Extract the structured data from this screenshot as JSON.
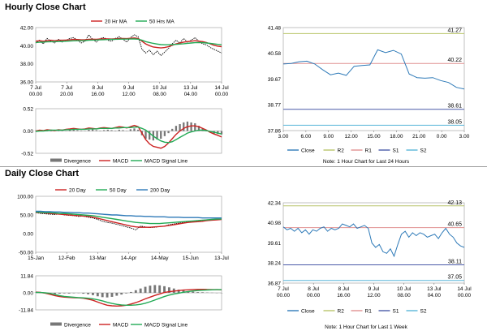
{
  "page": {
    "hourly_title": "Hourly Close Chart",
    "daily_title": "Daily Close Chart",
    "hourly_note": "Note: 1 Hour Chart for Last 24 Hours",
    "daily_note": "Note: 1 Hour Chart for Last 1 Week"
  },
  "colors": {
    "price": "#000000",
    "ma_fast": "#cc2222",
    "ma_slow": "#22aa55",
    "close": "#2e7ab8",
    "r2": "#b8c46a",
    "r1": "#e09090",
    "s1": "#4a5aa8",
    "s2": "#59b6d9",
    "divergence": "#777777",
    "macd": "#cc2222",
    "signal": "#22aa55"
  },
  "chart_data": [
    {
      "id": "hourly-ma",
      "type": "line",
      "ylim": [
        36.0,
        42.0
      ],
      "yticks": [
        "42.00",
        "40.00",
        "38.00",
        "36.00"
      ],
      "ytick_values": [
        42,
        40,
        38,
        36
      ],
      "xticks": [
        [
          "7 Jul",
          "00.00"
        ],
        [
          "7 Jul",
          "20.00"
        ],
        [
          "8 Jul",
          "16.00"
        ],
        [
          "9 Jul",
          "12.00"
        ],
        [
          "10 Jul",
          "08.00"
        ],
        [
          "13 Jul",
          "04.00"
        ],
        [
          "14 Jul",
          "00.00"
        ]
      ],
      "legend": [
        "20 Hr MA",
        "50 Hrs MA"
      ],
      "series": [
        {
          "name": "Price",
          "color_key": "price",
          "values": [
            40.3,
            40.6,
            40.2,
            40.8,
            40.5,
            40.3,
            40.7,
            40.4,
            40.6,
            40.8,
            40.9,
            40.6,
            40.3,
            40.5,
            41.2,
            40.7,
            40.4,
            40.8,
            40.9,
            40.6,
            40.5,
            40.8,
            41.0,
            40.7,
            40.4,
            40.9,
            41.2,
            41.0,
            39.6,
            39.2,
            39.5,
            39.0,
            39.4,
            38.9,
            39.3,
            39.7,
            40.2,
            40.6,
            40.3,
            40.8,
            40.4,
            40.6,
            40.9,
            40.5,
            40.2,
            40.1,
            39.8,
            39.6,
            39.4,
            39.2
          ]
        },
        {
          "name": "20 Hr MA",
          "color_key": "ma_fast",
          "values": [
            40.5,
            40.55,
            40.5,
            40.55,
            40.6,
            40.55,
            40.6,
            40.6,
            40.62,
            40.65,
            40.7,
            40.68,
            40.65,
            40.66,
            40.7,
            40.72,
            40.7,
            40.74,
            40.76,
            40.75,
            40.74,
            40.76,
            40.8,
            40.8,
            40.78,
            40.82,
            40.85,
            40.8,
            40.5,
            40.2,
            40.0,
            39.85,
            39.8,
            39.75,
            39.8,
            39.9,
            40.05,
            40.2,
            40.3,
            40.4,
            40.45,
            40.5,
            40.55,
            40.5,
            40.45,
            40.35,
            40.2,
            40.05,
            39.95,
            39.9
          ]
        },
        {
          "name": "50 Hrs MA",
          "color_key": "ma_slow",
          "values": [
            40.35,
            40.38,
            40.4,
            40.42,
            40.44,
            40.45,
            40.46,
            40.48,
            40.5,
            40.52,
            40.54,
            40.55,
            40.56,
            40.57,
            40.6,
            40.62,
            40.63,
            40.65,
            40.67,
            40.68,
            40.7,
            40.71,
            40.72,
            40.73,
            40.73,
            40.74,
            40.75,
            40.72,
            40.6,
            40.45,
            40.35,
            40.25,
            40.18,
            40.12,
            40.1,
            40.1,
            40.12,
            40.15,
            40.18,
            40.22,
            40.26,
            40.3,
            40.33,
            40.34,
            40.33,
            40.3,
            40.25,
            40.2,
            40.15,
            40.1
          ]
        }
      ]
    },
    {
      "id": "hourly-macd",
      "type": "line",
      "ylim": [
        -0.52,
        0.52
      ],
      "yticks": [
        "0.52",
        "0.00",
        "-0.52"
      ],
      "ytick_values": [
        0.52,
        0.0,
        -0.52
      ],
      "legend": [
        "Divergence",
        "MACD",
        "MACD Signal Line"
      ],
      "series": [
        {
          "name": "Divergence",
          "color_key": "divergence",
          "values": [
            0.01,
            0.02,
            0.01,
            0.0,
            -0.01,
            0.02,
            0.03,
            0.01,
            0.0,
            0.02,
            0.03,
            0.02,
            0.01,
            0.0,
            0.03,
            0.04,
            0.02,
            0.01,
            0.02,
            0.03,
            0.02,
            0.01,
            0.03,
            0.02,
            0.0,
            0.04,
            0.06,
            0.03,
            -0.1,
            -0.18,
            -0.2,
            -0.22,
            -0.2,
            -0.18,
            -0.12,
            -0.05,
            0.05,
            0.12,
            0.16,
            0.2,
            0.22,
            0.2,
            0.18,
            0.12,
            0.06,
            0.0,
            -0.04,
            -0.06,
            -0.07,
            -0.08
          ]
        },
        {
          "name": "MACD",
          "color_key": "macd",
          "values": [
            0.0,
            0.02,
            0.01,
            0.03,
            0.02,
            0.01,
            0.03,
            0.02,
            0.04,
            0.05,
            0.06,
            0.05,
            0.04,
            0.05,
            0.07,
            0.06,
            0.05,
            0.07,
            0.08,
            0.07,
            0.06,
            0.08,
            0.1,
            0.09,
            0.07,
            0.1,
            0.13,
            0.1,
            -0.05,
            -0.2,
            -0.3,
            -0.36,
            -0.38,
            -0.4,
            -0.36,
            -0.28,
            -0.18,
            -0.08,
            0.0,
            0.06,
            0.1,
            0.12,
            0.12,
            0.1,
            0.06,
            0.02,
            -0.03,
            -0.07,
            -0.1,
            -0.14
          ]
        },
        {
          "name": "MACD Signal Line",
          "color_key": "signal",
          "values": [
            -0.01,
            0.0,
            0.0,
            0.01,
            0.02,
            0.02,
            0.02,
            0.02,
            0.03,
            0.03,
            0.04,
            0.04,
            0.04,
            0.04,
            0.05,
            0.05,
            0.05,
            0.06,
            0.06,
            0.06,
            0.06,
            0.07,
            0.07,
            0.08,
            0.08,
            0.08,
            0.09,
            0.09,
            0.06,
            0.02,
            -0.05,
            -0.12,
            -0.18,
            -0.23,
            -0.26,
            -0.27,
            -0.25,
            -0.2,
            -0.15,
            -0.1,
            -0.05,
            -0.02,
            0.0,
            0.02,
            0.02,
            0.01,
            -0.01,
            -0.03,
            -0.05,
            -0.07
          ]
        }
      ]
    },
    {
      "id": "hourly-levels",
      "type": "line",
      "ylim": [
        37.86,
        41.48
      ],
      "yticks": [
        "41.48",
        "40.58",
        "39.67",
        "38.77",
        "37.86"
      ],
      "ytick_values": [
        41.48,
        40.58,
        39.67,
        38.77,
        37.86
      ],
      "xticks": [
        "3.00",
        "6.00",
        "9.00",
        "12.00",
        "15.00",
        "18.00",
        "21.00",
        "0.00",
        "3.00"
      ],
      "levels": [
        {
          "name": "R2",
          "value": 41.27,
          "label": "41.27",
          "color_key": "r2"
        },
        {
          "name": "R1",
          "value": 40.22,
          "label": "40.22",
          "color_key": "r1"
        },
        {
          "name": "S1",
          "value": 38.61,
          "label": "38.61",
          "color_key": "s1"
        },
        {
          "name": "S2",
          "value": 38.05,
          "label": "38.05",
          "color_key": "s2"
        }
      ],
      "legend": [
        "Close",
        "R2",
        "R1",
        "S1",
        "S2"
      ],
      "series": [
        {
          "name": "Close",
          "color_key": "close",
          "values": [
            40.2,
            40.22,
            40.28,
            40.3,
            40.2,
            40.0,
            39.82,
            39.88,
            39.8,
            40.12,
            40.15,
            40.17,
            40.7,
            40.6,
            40.68,
            40.55,
            39.85,
            39.72,
            39.7,
            39.72,
            39.62,
            39.55,
            39.38,
            39.32
          ]
        }
      ]
    },
    {
      "id": "daily-ma",
      "type": "line",
      "ylim": [
        -50.0,
        100.0
      ],
      "yticks": [
        "100.00",
        "50.00",
        "0.00",
        "-50.00"
      ],
      "ytick_values": [
        100,
        50,
        0,
        -50
      ],
      "xticks": [
        "15-Jan",
        "12-Feb",
        "13-Mar",
        "14-Apr",
        "14-May",
        "15-Jun",
        "13-Jul"
      ],
      "legend": [
        "20 Day",
        "50 Day",
        "200 Day"
      ],
      "series": [
        {
          "name": "Price",
          "color_key": "price",
          "values": [
            56,
            54,
            53,
            52,
            51,
            53,
            50,
            49,
            48,
            46,
            47,
            44,
            42,
            38,
            33,
            30,
            28,
            25,
            22,
            18,
            15,
            10,
            20,
            18,
            16,
            17,
            19,
            20,
            24,
            26,
            28,
            30,
            31,
            32,
            33,
            35,
            36,
            37,
            38,
            40
          ]
        },
        {
          "name": "20 Day",
          "color_key": "ma_fast",
          "values": [
            57,
            56,
            55,
            54,
            53,
            52,
            51,
            50,
            49,
            48,
            47,
            46,
            44,
            41,
            38,
            35,
            32,
            29,
            26,
            23,
            20,
            18,
            17,
            17,
            17,
            18,
            19,
            20,
            22,
            24,
            26,
            28,
            30,
            31,
            32,
            33,
            35,
            36,
            37,
            38
          ]
        },
        {
          "name": "50 Day",
          "color_key": "signal",
          "values": [
            58,
            57,
            56,
            56,
            55,
            54,
            54,
            53,
            52,
            51,
            50,
            49,
            48,
            46,
            44,
            42,
            40,
            38,
            36,
            34,
            32,
            30,
            29,
            28,
            27,
            27,
            27,
            28,
            29,
            30,
            31,
            32,
            33,
            34,
            35,
            36,
            37,
            38,
            39,
            39
          ]
        },
        {
          "name": "200 Day",
          "color_key": "close",
          "values": [
            60,
            60,
            59,
            59,
            58,
            58,
            57,
            57,
            56,
            56,
            55,
            55,
            54,
            53,
            52,
            51,
            50,
            50,
            49,
            48,
            48,
            47,
            47,
            46,
            46,
            45,
            45,
            45,
            44,
            44,
            44,
            43,
            43,
            43,
            43,
            42,
            42,
            42,
            42,
            42
          ]
        }
      ]
    },
    {
      "id": "daily-macd",
      "type": "line",
      "ylim": [
        -11.84,
        11.84
      ],
      "yticks": [
        "11.84",
        "0.00",
        "-11.84"
      ],
      "ytick_values": [
        11.84,
        0.0,
        -11.84
      ],
      "legend": [
        "Divergence",
        "MACD",
        "MACD Signal Line"
      ],
      "series": [
        {
          "name": "Divergence",
          "color_key": "divergence",
          "values": [
            0.2,
            0.1,
            -0.2,
            -0.5,
            -0.8,
            -0.6,
            -0.4,
            -0.5,
            -0.3,
            -0.2,
            -0.6,
            -1.0,
            -1.6,
            -2.4,
            -3.0,
            -3.2,
            -2.8,
            -2.0,
            -1.2,
            -0.4,
            0.6,
            1.8,
            3.0,
            4.2,
            5.0,
            5.4,
            5.2,
            4.6,
            3.8,
            3.0,
            2.2,
            1.6,
            1.0,
            0.8,
            0.5,
            0.4,
            0.2,
            0.1,
            0.0,
            -0.1
          ]
        },
        {
          "name": "MACD",
          "color_key": "macd",
          "values": [
            0.5,
            0.3,
            -0.2,
            -1.0,
            -2.0,
            -2.6,
            -3.0,
            -3.2,
            -3.4,
            -3.5,
            -3.8,
            -4.4,
            -5.2,
            -6.4,
            -7.6,
            -8.6,
            -9.0,
            -9.2,
            -9.0,
            -8.6,
            -7.8,
            -6.8,
            -5.6,
            -4.2,
            -3.0,
            -1.8,
            -0.8,
            0.2,
            0.8,
            1.2,
            1.6,
            1.9,
            2.1,
            2.3,
            2.4,
            2.4,
            2.3,
            2.2,
            2.2,
            2.1
          ]
        },
        {
          "name": "MACD Signal Line",
          "color_key": "signal",
          "values": [
            0.3,
            0.2,
            0.0,
            -0.4,
            -1.1,
            -1.9,
            -2.5,
            -2.8,
            -3.1,
            -3.3,
            -3.5,
            -3.8,
            -4.2,
            -4.8,
            -5.6,
            -6.6,
            -7.4,
            -8.0,
            -8.4,
            -8.6,
            -8.6,
            -8.4,
            -8.0,
            -7.2,
            -6.2,
            -5.0,
            -3.8,
            -2.6,
            -1.6,
            -0.8,
            -0.2,
            0.4,
            0.9,
            1.3,
            1.6,
            1.8,
            2.0,
            2.1,
            2.2,
            2.2
          ]
        }
      ]
    },
    {
      "id": "daily-levels",
      "type": "line",
      "ylim": [
        36.87,
        42.34
      ],
      "yticks": [
        "42.34",
        "40.98",
        "39.61",
        "38.24",
        "36.87"
      ],
      "ytick_values": [
        42.34,
        40.98,
        39.61,
        38.24,
        36.87
      ],
      "xticks": [
        [
          "7 Jul",
          "00.00"
        ],
        [
          "8 Jul",
          "00.00"
        ],
        [
          "8 Jul",
          "16.00"
        ],
        [
          "9 Jul",
          "12.00"
        ],
        [
          "10 Jul",
          "08.00"
        ],
        [
          "13 Jul",
          "04.00"
        ],
        [
          "14 Jul",
          "00.00"
        ]
      ],
      "levels": [
        {
          "name": "R2",
          "value": 42.13,
          "label": "42.13",
          "color_key": "r2"
        },
        {
          "name": "R1",
          "value": 40.65,
          "label": "40.65",
          "color_key": "r1"
        },
        {
          "name": "S1",
          "value": 38.11,
          "label": "38.11",
          "color_key": "s1"
        },
        {
          "name": "S2",
          "value": 37.05,
          "label": "37.05",
          "color_key": "s2"
        }
      ],
      "legend": [
        "Close",
        "R2",
        "R1",
        "S1",
        "S2"
      ],
      "series": [
        {
          "name": "Close",
          "color_key": "close",
          "values": [
            40.7,
            40.5,
            40.6,
            40.4,
            40.6,
            40.3,
            40.5,
            40.2,
            40.5,
            40.4,
            40.6,
            40.7,
            40.4,
            40.6,
            40.5,
            40.6,
            40.9,
            40.8,
            40.7,
            40.9,
            40.6,
            40.7,
            40.8,
            40.6,
            39.6,
            39.3,
            39.5,
            39.0,
            38.9,
            39.2,
            38.7,
            39.5,
            40.2,
            40.4,
            40.0,
            40.3,
            40.1,
            40.3,
            40.2,
            40.0,
            40.1,
            40.2,
            39.9,
            40.3,
            40.6,
            40.2,
            40.0,
            39.6,
            39.4,
            39.3
          ]
        }
      ]
    }
  ]
}
